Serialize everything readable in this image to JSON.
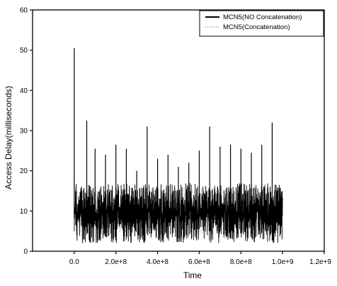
{
  "chart_data": {
    "type": "line",
    "title": "",
    "xlabel": "Time",
    "ylabel": "Access Delay(milliseconds)",
    "xlim": [
      -200000000,
      1200000000
    ],
    "ylim": [
      0,
      60
    ],
    "x_ticks": [
      0,
      200000000,
      400000000,
      600000000,
      800000000,
      1000000000,
      1200000000
    ],
    "x_tick_labels": [
      "0.0",
      "2.0e+8",
      "4.0e+8",
      "6.0e+8",
      "8.0e+8",
      "1.0e+9",
      "1.2e+9"
    ],
    "y_ticks": [
      0,
      10,
      20,
      30,
      40,
      50,
      60
    ],
    "y_tick_labels": [
      "0",
      "10",
      "20",
      "30",
      "40",
      "50",
      "60"
    ],
    "grid": false,
    "legend_position": "top-right",
    "series": [
      {
        "name": "MCN5(NO Concatenation)",
        "color": "#000000",
        "style": "solid",
        "x_range": [
          0,
          1000000000
        ],
        "baseline_band": [
          2,
          17
        ],
        "peaks": [
          {
            "x": 0,
            "y": 50.5
          },
          {
            "x": 60000000,
            "y": 32.5
          },
          {
            "x": 100000000,
            "y": 25.5
          },
          {
            "x": 150000000,
            "y": 24.0
          },
          {
            "x": 200000000,
            "y": 26.5
          },
          {
            "x": 250000000,
            "y": 25.5
          },
          {
            "x": 300000000,
            "y": 20.0
          },
          {
            "x": 350000000,
            "y": 31.0
          },
          {
            "x": 400000000,
            "y": 23.0
          },
          {
            "x": 450000000,
            "y": 24.0
          },
          {
            "x": 500000000,
            "y": 21.0
          },
          {
            "x": 550000000,
            "y": 22.0
          },
          {
            "x": 600000000,
            "y": 25.0
          },
          {
            "x": 650000000,
            "y": 31.0
          },
          {
            "x": 700000000,
            "y": 26.0
          },
          {
            "x": 750000000,
            "y": 26.5
          },
          {
            "x": 800000000,
            "y": 25.5
          },
          {
            "x": 850000000,
            "y": 24.5
          },
          {
            "x": 900000000,
            "y": 26.5
          },
          {
            "x": 950000000,
            "y": 32.0
          }
        ]
      },
      {
        "name": "MCN5(Concatenation)",
        "color": "#555555",
        "style": "dotted",
        "x_range": [
          0,
          1000000000
        ],
        "baseline_band": [
          4,
          16
        ],
        "peaks": []
      }
    ]
  }
}
